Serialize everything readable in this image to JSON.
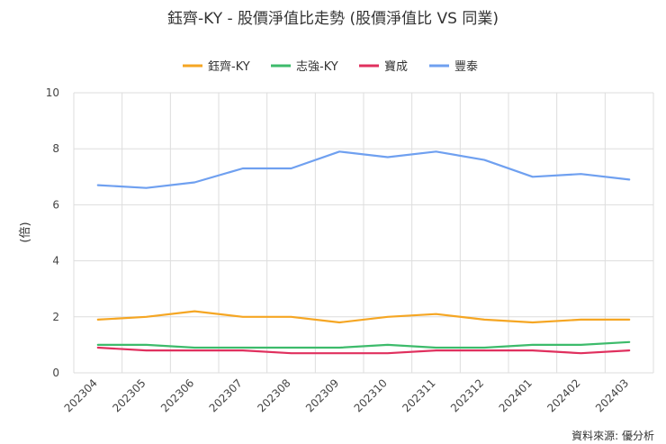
{
  "chart_data": {
    "type": "line",
    "title": "鈺齊-KY - 股價淨值比走勢 (股價淨值比 VS 同業)",
    "ylabel": "(倍)",
    "xlabel": "",
    "categories": [
      "202304",
      "202305",
      "202306",
      "202307",
      "202308",
      "202309",
      "202310",
      "202311",
      "202312",
      "202401",
      "202402",
      "202403"
    ],
    "ylim": [
      0,
      10
    ],
    "yticks": [
      0,
      2,
      4,
      6,
      8,
      10
    ],
    "grid": true,
    "legend_position": "top",
    "series": [
      {
        "name": "鈺齊-KY",
        "color": "#f5a623",
        "values": [
          1.9,
          2.0,
          2.2,
          2.0,
          2.0,
          1.8,
          2.0,
          2.1,
          1.9,
          1.8,
          1.9,
          1.9
        ]
      },
      {
        "name": "志強-KY",
        "color": "#3dbb6b",
        "values": [
          1.0,
          1.0,
          0.9,
          0.9,
          0.9,
          0.9,
          1.0,
          0.9,
          0.9,
          1.0,
          1.0,
          1.1
        ]
      },
      {
        "name": "寶成",
        "color": "#e0305e",
        "values": [
          0.9,
          0.8,
          0.8,
          0.8,
          0.7,
          0.7,
          0.7,
          0.8,
          0.8,
          0.8,
          0.7,
          0.8
        ]
      },
      {
        "name": "豐泰",
        "color": "#6fa0f0",
        "values": [
          6.7,
          6.6,
          6.8,
          7.3,
          7.3,
          7.9,
          7.7,
          7.9,
          7.6,
          7.0,
          7.1,
          6.9
        ]
      }
    ]
  },
  "source": "資料來源: 優分析"
}
